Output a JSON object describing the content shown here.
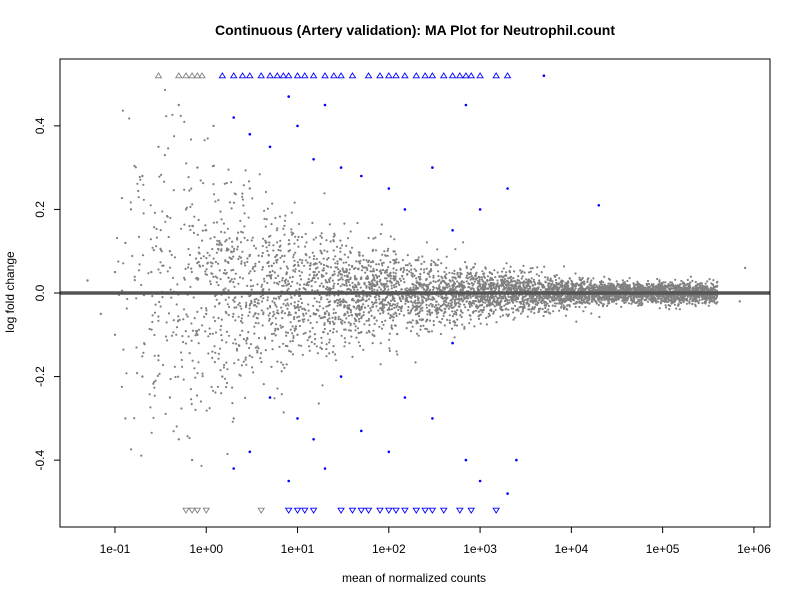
{
  "chart_data": {
    "type": "scatter",
    "title": "Continuous (Artery validation): MA Plot for Neutrophil.count",
    "xlabel": "mean of normalized counts",
    "ylabel": "log fold change",
    "x_scale": "log10",
    "xlim": [
      0.025,
      1500000
    ],
    "ylim": [
      -0.56,
      0.56
    ],
    "x_ticks": [
      {
        "value": 0.1,
        "label": "1e-01"
      },
      {
        "value": 1,
        "label": "1e+00"
      },
      {
        "value": 10,
        "label": "1e+01"
      },
      {
        "value": 100,
        "label": "1e+02"
      },
      {
        "value": 1000,
        "label": "1e+03"
      },
      {
        "value": 10000,
        "label": "1e+04"
      },
      {
        "value": 100000,
        "label": "1e+05"
      },
      {
        "value": 1000000,
        "label": "1e+06"
      }
    ],
    "y_ticks": [
      {
        "value": 0.4,
        "label": "0.4"
      },
      {
        "value": 0.2,
        "label": "0.2"
      },
      {
        "value": 0.0,
        "label": "0.0"
      },
      {
        "value": -0.2,
        "label": "-0.2"
      },
      {
        "value": -0.4,
        "label": "-0.4"
      }
    ],
    "reference_line": {
      "y": 0,
      "color": "#555555"
    },
    "colors": {
      "non_significant": "#808080",
      "significant": "#0000ff"
    },
    "clipped_marker_y": 0.52,
    "series": [
      {
        "color": "#808080",
        "points": [
          [
            0.05,
            0.03
          ],
          [
            0.07,
            -0.05
          ],
          [
            0.1,
            0.05
          ],
          [
            0.1,
            -0.1
          ],
          [
            0.13,
            0.12
          ],
          [
            0.13,
            -0.3
          ],
          [
            0.15,
            0.2
          ],
          [
            0.2,
            -0.2
          ],
          [
            0.2,
            0.28
          ],
          [
            0.25,
            0.05
          ],
          [
            0.3,
            -0.15
          ],
          [
            0.3,
            0.35
          ],
          [
            0.4,
            0.1
          ],
          [
            0.4,
            -0.25
          ],
          [
            0.5,
            0.45
          ],
          [
            0.5,
            -0.35
          ],
          [
            0.6,
            0.0
          ],
          [
            0.6,
            0.2
          ],
          [
            0.7,
            -0.4
          ],
          [
            0.8,
            0.3
          ],
          [
            0.8,
            -0.1
          ],
          [
            1.0,
            0.15
          ],
          [
            1.0,
            -0.05
          ],
          [
            1.2,
            0.4
          ],
          [
            1.5,
            -0.2
          ],
          [
            2.0,
            0.1
          ],
          [
            2.0,
            -0.3
          ],
          [
            3.0,
            0.25
          ],
          [
            3.0,
            -0.15
          ],
          [
            5.0,
            0.05
          ],
          [
            5.0,
            -0.25
          ],
          [
            8.0,
            0.1
          ],
          [
            10.0,
            -0.1
          ],
          [
            15.0,
            0.05
          ],
          [
            20.0,
            -0.05
          ],
          [
            30.0,
            0.08
          ],
          [
            50.0,
            -0.06
          ],
          [
            100.0,
            0.04
          ],
          [
            200.0,
            -0.04
          ],
          [
            500.0,
            0.03
          ],
          [
            1000.0,
            0.02
          ],
          [
            1000.0,
            -0.03
          ],
          [
            3000.0,
            0.02
          ],
          [
            5000.0,
            -0.02
          ],
          [
            10000.0,
            0.01
          ],
          [
            20000.0,
            -0.01
          ],
          [
            50000.0,
            0.01
          ],
          [
            100000.0,
            -0.01
          ],
          [
            300000.0,
            0.0
          ],
          [
            800000.0,
            0.06
          ],
          [
            700000.0,
            -0.02
          ]
        ]
      },
      {
        "color": "#0000ff",
        "points": [
          [
            2.0,
            0.42
          ],
          [
            3.0,
            0.38
          ],
          [
            5.0,
            0.35
          ],
          [
            8.0,
            0.47
          ],
          [
            10.0,
            0.4
          ],
          [
            15.0,
            0.32
          ],
          [
            20.0,
            0.45
          ],
          [
            30.0,
            0.3
          ],
          [
            50.0,
            0.28
          ],
          [
            100.0,
            0.25
          ],
          [
            150.0,
            0.2
          ],
          [
            300.0,
            0.3
          ],
          [
            500.0,
            0.15
          ],
          [
            700.0,
            0.45
          ],
          [
            1000.0,
            0.2
          ],
          [
            2000.0,
            0.25
          ],
          [
            5000.0,
            0.52
          ],
          [
            20000.0,
            0.21
          ],
          [
            2.0,
            -0.42
          ],
          [
            3.0,
            -0.38
          ],
          [
            5.0,
            -0.25
          ],
          [
            8.0,
            -0.45
          ],
          [
            10.0,
            -0.3
          ],
          [
            15.0,
            -0.35
          ],
          [
            20.0,
            -0.42
          ],
          [
            30.0,
            -0.2
          ],
          [
            50.0,
            -0.33
          ],
          [
            100.0,
            -0.38
          ],
          [
            150.0,
            -0.25
          ],
          [
            300.0,
            -0.3
          ],
          [
            500.0,
            -0.12
          ],
          [
            700.0,
            -0.4
          ],
          [
            1000.0,
            -0.45
          ],
          [
            2000.0,
            -0.48
          ],
          [
            2500.0,
            -0.4
          ]
        ]
      }
    ],
    "clipped_up": {
      "grey": [
        0.3,
        0.5,
        0.6,
        0.7,
        0.8,
        0.9
      ],
      "blue": [
        1.5,
        2,
        2.5,
        3,
        4,
        5,
        6,
        7,
        8,
        10,
        12,
        15,
        20,
        25,
        30,
        40,
        60,
        80,
        100,
        120,
        150,
        200,
        250,
        300,
        400,
        500,
        600,
        700,
        800,
        1000,
        1500,
        2000
      ]
    },
    "clipped_down": {
      "grey": [
        0.6,
        0.7,
        0.8,
        1.0,
        4.0
      ],
      "blue": [
        8,
        10,
        12,
        15,
        30,
        40,
        50,
        60,
        80,
        100,
        120,
        150,
        200,
        250,
        300,
        400,
        600,
        800,
        1500
      ]
    }
  }
}
